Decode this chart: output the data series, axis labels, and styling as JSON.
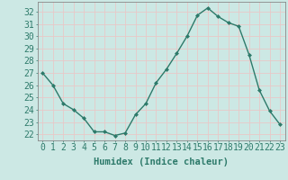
{
  "x": [
    0,
    1,
    2,
    3,
    4,
    5,
    6,
    7,
    8,
    9,
    10,
    11,
    12,
    13,
    14,
    15,
    16,
    17,
    18,
    19,
    20,
    21,
    22,
    23
  ],
  "y": [
    27.0,
    26.0,
    24.5,
    24.0,
    23.3,
    22.2,
    22.2,
    21.9,
    22.1,
    23.6,
    24.5,
    26.2,
    27.3,
    28.6,
    30.0,
    31.7,
    32.3,
    31.6,
    31.1,
    30.8,
    28.5,
    25.6,
    23.9,
    22.8
  ],
  "line_color": "#2d7a6a",
  "marker_color": "#2d7a6a",
  "bg_color": "#cce8e4",
  "grid_color": "#e8c8c8",
  "xlabel": "Humidex (Indice chaleur)",
  "ylabel_ticks": [
    22,
    23,
    24,
    25,
    26,
    27,
    28,
    29,
    30,
    31,
    32
  ],
  "ylim": [
    21.5,
    32.8
  ],
  "xlim": [
    -0.5,
    23.5
  ],
  "xlabel_fontsize": 7.5,
  "tick_fontsize": 7,
  "tick_color": "#2d7a6a",
  "spine_color": "#888888"
}
